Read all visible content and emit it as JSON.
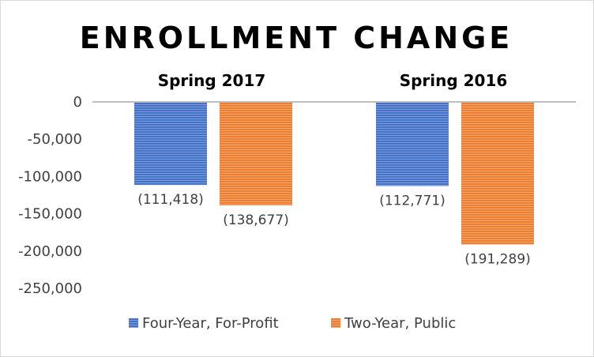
{
  "chart_data": {
    "type": "bar",
    "title": "ENROLLMENT CHANGE",
    "categories": [
      "Spring 2017",
      "Spring 2016"
    ],
    "series": [
      {
        "name": "Four-Year, For-Profit",
        "values": [
          -111418,
          -112771
        ],
        "labels": [
          "(111,418)",
          "(112,771)"
        ],
        "color": "#4472c4"
      },
      {
        "name": "Two-Year, Public",
        "values": [
          -138677,
          -191289
        ],
        "labels": [
          "(138,677)",
          "(191,289)"
        ],
        "color": "#ed7d31"
      }
    ],
    "yticks": [
      0,
      -50000,
      -100000,
      -150000,
      -200000,
      -250000
    ],
    "ytick_labels": [
      "0",
      "-50,000",
      "-100,000",
      "-150,000",
      "-200,000",
      "-250,000"
    ],
    "ylim": [
      -250000,
      0
    ],
    "xlabel": "",
    "ylabel": "",
    "grid": false,
    "legend_position": "bottom",
    "category_label_position": "top"
  }
}
